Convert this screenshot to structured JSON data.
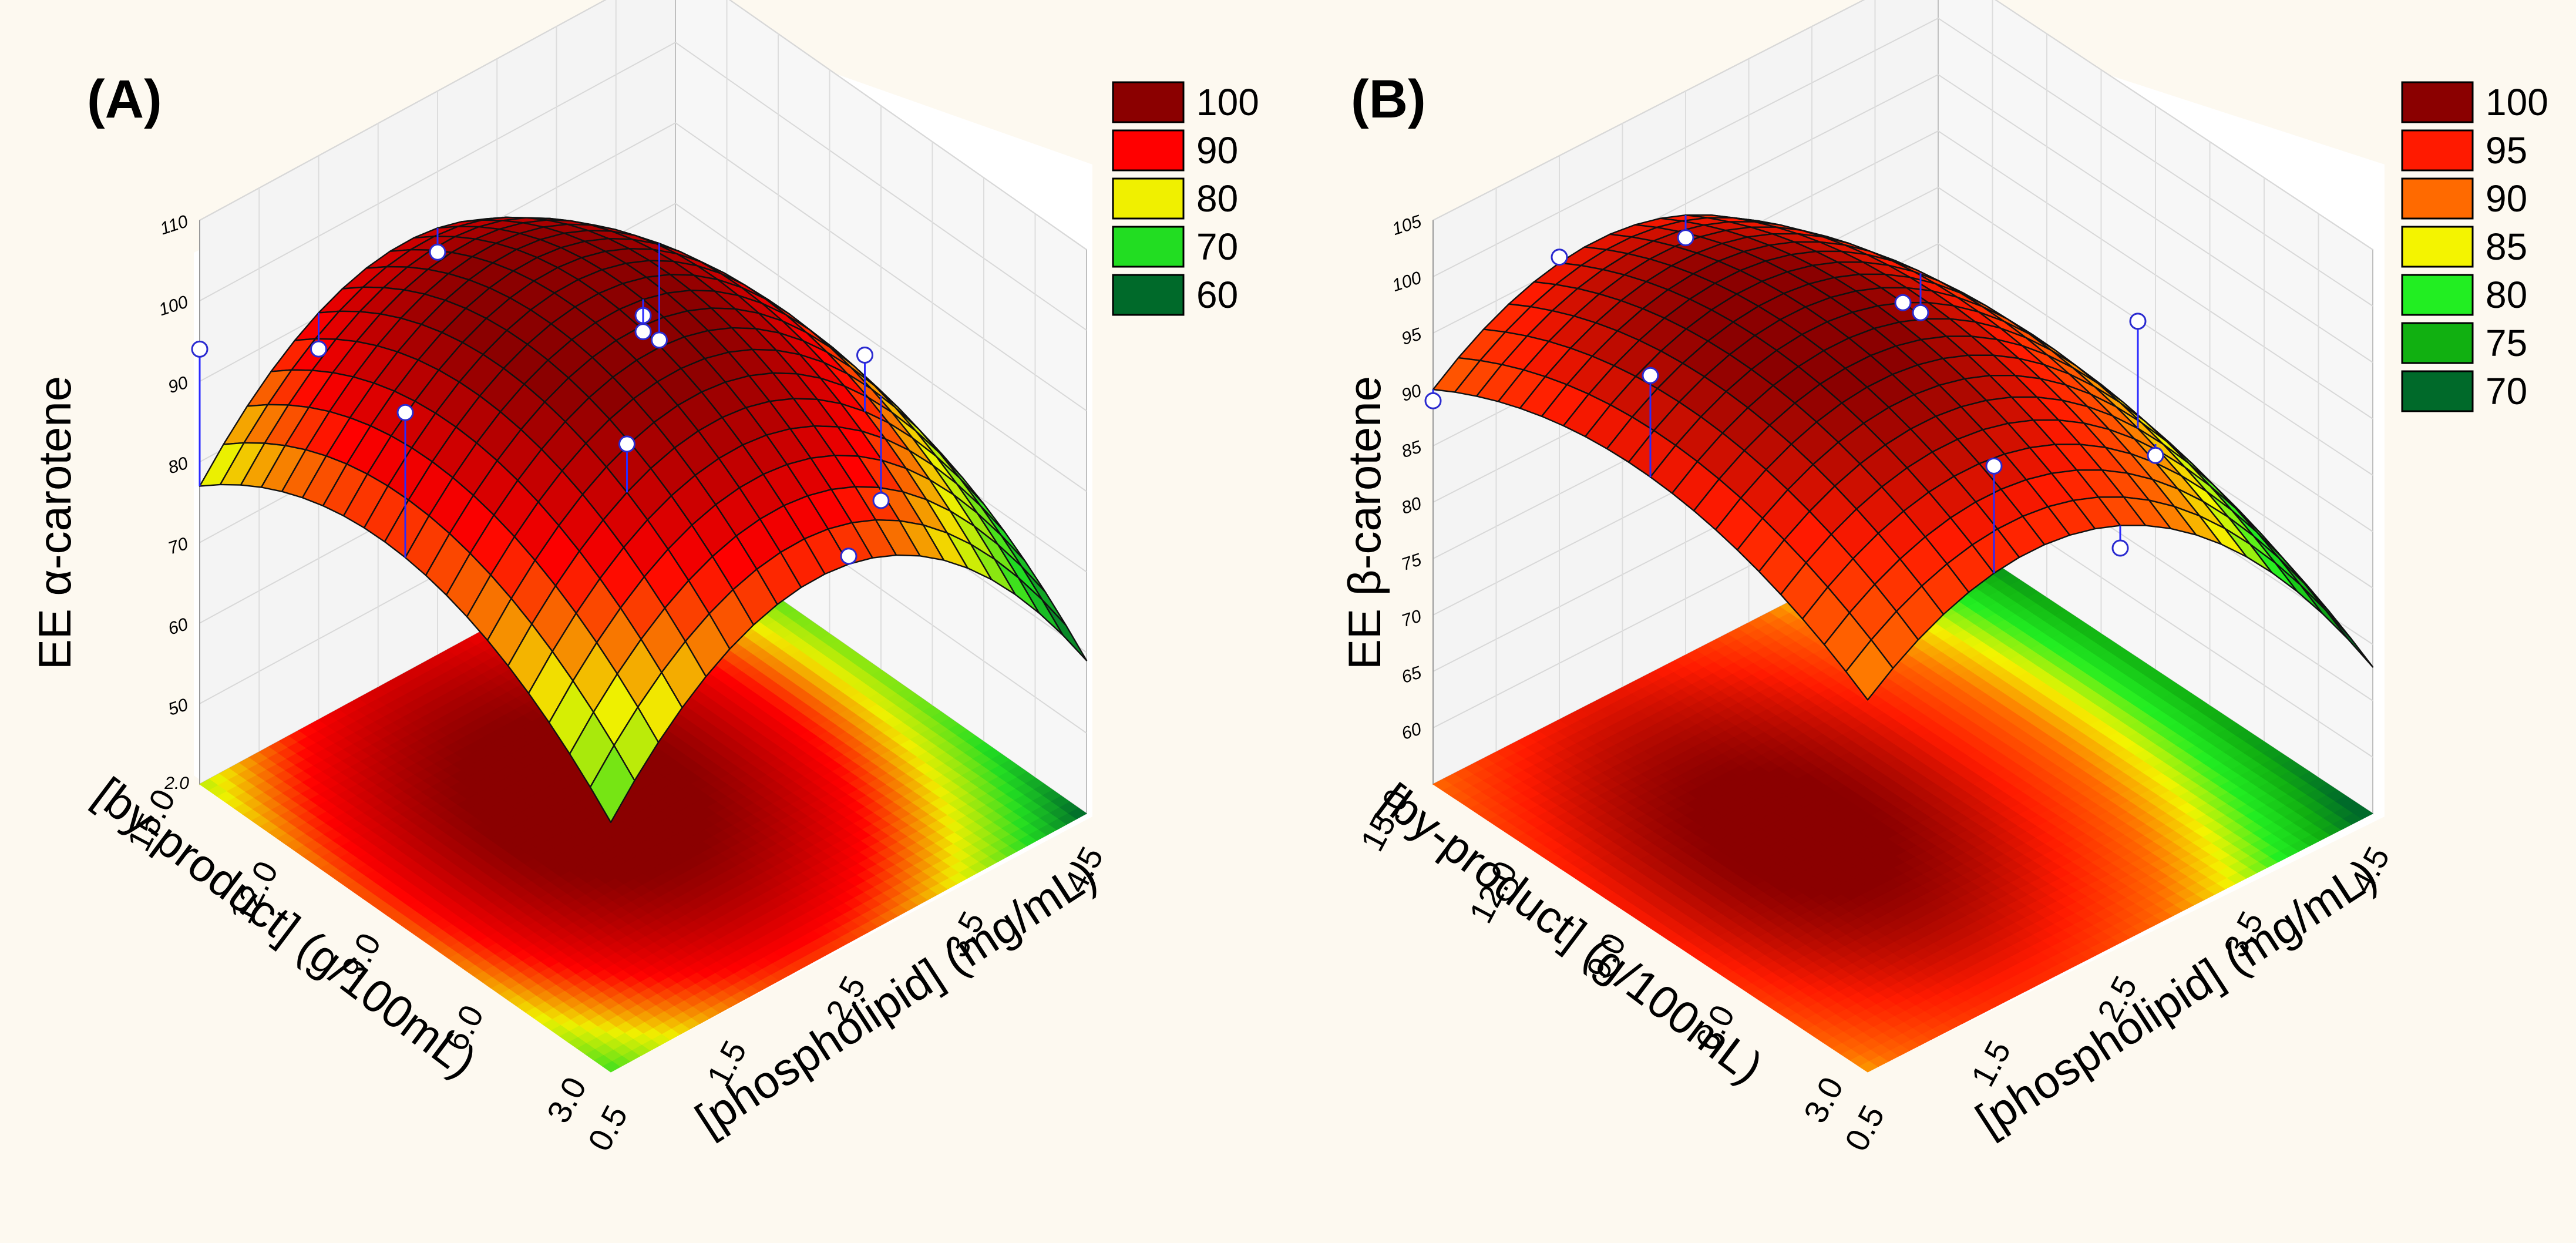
{
  "chart_data": [
    {
      "type": "surface3d",
      "panel_label": "(A)",
      "zlabel": "EE α-carotene",
      "xlabel": "[phospholipid] (mg/mL)",
      "ylabel": "[by-product] (g/100mL)",
      "x_ticks": [
        "0.5",
        "1.5",
        "2.5",
        "3.5",
        "4.5"
      ],
      "y_ticks": [
        "3.0",
        "6.0",
        "9.0",
        "12.0",
        "15.0"
      ],
      "z_ticks": [
        "50",
        "60",
        "70",
        "80",
        "90",
        "100",
        "110"
      ],
      "floor_tick": "2.0",
      "xlim": [
        0.5,
        4.5
      ],
      "ylim": [
        3.0,
        15.0
      ],
      "zlim": [
        40,
        110
      ],
      "model": {
        "b0": 102,
        "bx": -6,
        "bxx": -22,
        "by": 3,
        "byy": -12,
        "bxy": 0
      },
      "legend": [
        {
          "label": "100",
          "color": "#8b0000"
        },
        {
          "label": "90",
          "color": "#ff0000"
        },
        {
          "label": "80",
          "color": "#f0f000"
        },
        {
          "label": "70",
          "color": "#22dd22"
        },
        {
          "label": "60",
          "color": "#006a2a"
        }
      ],
      "points": [
        {
          "x": 0.5,
          "y": 9.0,
          "z": 104
        },
        {
          "x": 1.5,
          "y": 15.0,
          "z": 86
        },
        {
          "x": 2.5,
          "y": 9.0,
          "z": 100
        },
        {
          "x": 2.5,
          "y": 3.0,
          "z": 88
        },
        {
          "x": 1.5,
          "y": 6.0,
          "z": 101
        },
        {
          "x": 3.5,
          "y": 6.0,
          "z": 96
        },
        {
          "x": 2.5,
          "y": 15.0,
          "z": 90
        },
        {
          "x": 3.5,
          "y": 12.0,
          "z": 80
        },
        {
          "x": 4.5,
          "y": 9.0,
          "z": 61
        },
        {
          "x": 0.5,
          "y": 15.0,
          "z": 94
        },
        {
          "x": 2.5,
          "y": 9.0,
          "z": 98
        }
      ]
    },
    {
      "type": "surface3d",
      "panel_label": "(B)",
      "zlabel": "EE β-carotene",
      "xlabel": "[phospholipid] (mg/mL)",
      "ylabel": "[by-product] (g/100mL)",
      "x_ticks": [
        "0.5",
        "1.5",
        "2.5",
        "3.5",
        "4.5"
      ],
      "y_ticks": [
        "3.0",
        "6.0",
        "9.0",
        "12.0",
        "15.0"
      ],
      "z_ticks": [
        "60",
        "65",
        "70",
        "75",
        "80",
        "85",
        "90",
        "95",
        "100",
        "105"
      ],
      "floor_tick": "",
      "xlim": [
        0.5,
        4.5
      ],
      "ylim": [
        3.0,
        15.0
      ],
      "zlim": [
        55,
        105
      ],
      "model": {
        "b0": 99,
        "bx": -10,
        "bxx": -14,
        "by": 1,
        "byy": -6,
        "bxy": 0
      },
      "legend": [
        {
          "label": "100",
          "color": "#8b0000"
        },
        {
          "label": "95",
          "color": "#ff1a00"
        },
        {
          "label": "90",
          "color": "#ff6a00"
        },
        {
          "label": "85",
          "color": "#f4f400"
        },
        {
          "label": "80",
          "color": "#22ee22"
        },
        {
          "label": "75",
          "color": "#11b011"
        },
        {
          "label": "70",
          "color": "#006a2a"
        }
      ],
      "points": [
        {
          "x": 0.5,
          "y": 9.0,
          "z": 104
        },
        {
          "x": 1.5,
          "y": 15.0,
          "z": 96
        },
        {
          "x": 1.5,
          "y": 3.0,
          "z": 103
        },
        {
          "x": 2.5,
          "y": 9.0,
          "z": 99
        },
        {
          "x": 2.5,
          "y": 15.0,
          "z": 92
        },
        {
          "x": 3.5,
          "y": 6.0,
          "z": 98
        },
        {
          "x": 2.5,
          "y": 3.0,
          "z": 90
        },
        {
          "x": 3.5,
          "y": 12.0,
          "z": 86
        },
        {
          "x": 4.5,
          "y": 9.0,
          "z": 74
        },
        {
          "x": 0.5,
          "y": 15.0,
          "z": 89
        }
      ]
    }
  ]
}
